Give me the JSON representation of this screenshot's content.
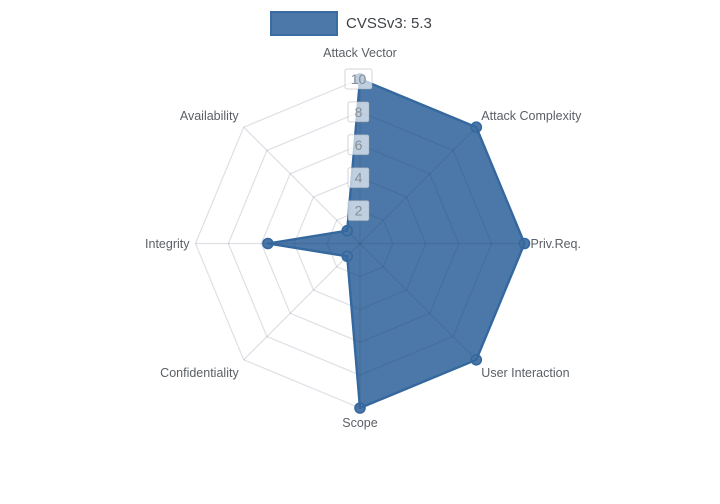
{
  "legend": {
    "label": "CVSSv3: 5.3"
  },
  "chart_data": {
    "type": "radar",
    "axes": [
      "Attack Vector",
      "Attack Complexity",
      "Priv.Req.",
      "User Interaction",
      "Scope",
      "Confidentiality",
      "Integrity",
      "Availability"
    ],
    "series": [
      {
        "name": "CVSSv3: 5.3",
        "values": [
          10,
          10,
          10,
          10,
          10,
          1.1,
          5.6,
          1.1
        ]
      }
    ],
    "radial_range": [
      0,
      10
    ],
    "ring_values": [
      2,
      4,
      6,
      8,
      10
    ],
    "tick_labels": [
      "2",
      "4",
      "6",
      "8",
      "10"
    ],
    "grid": true,
    "grid_shape": "octagon",
    "legend_position": "top-center",
    "colors": {
      "fill": "#4b78a8",
      "line": "#35689e",
      "grid_rgba": "rgba(50,65,95,0.16)",
      "axis_label": "#5b6066",
      "tick_label": "#868e96",
      "tick_bg": "rgba(255,255,255,0.65)",
      "tick_border": "rgba(160,165,172,0.45)",
      "legend_text": "#3f4348",
      "legend_swatch_fill": "#4b78a8",
      "legend_swatch_border": "#3a6ba3"
    }
  }
}
